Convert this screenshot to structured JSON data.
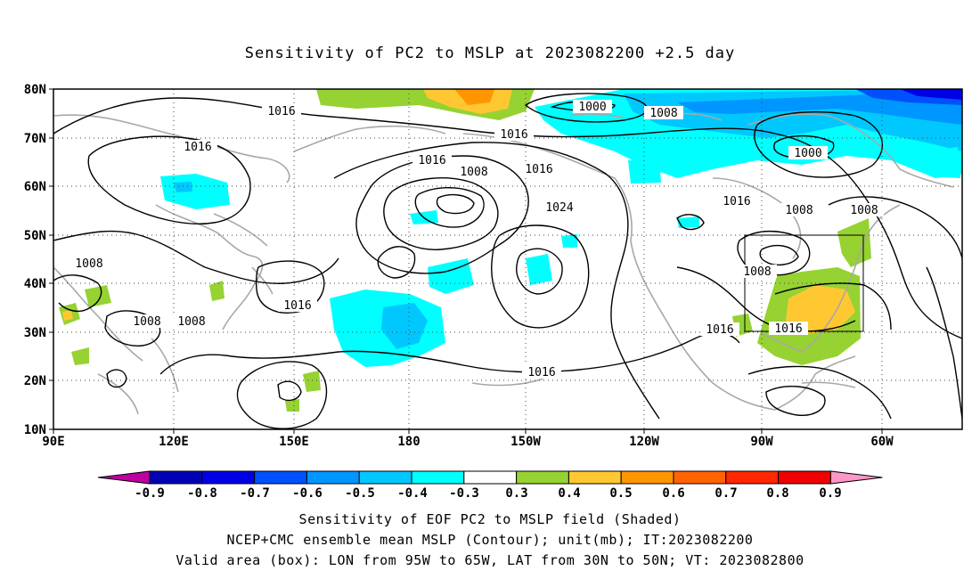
{
  "title": "Sensitivity of PC2 to MSLP at 2023082200 +2.5 day",
  "lat_labels": [
    "80N",
    "70N",
    "60N",
    "50N",
    "40N",
    "30N",
    "20N",
    "10N"
  ],
  "lon_labels": [
    "90E",
    "120E",
    "150E",
    "180",
    "150W",
    "120W",
    "90W",
    "60W"
  ],
  "contour_labels": [
    {
      "text": "1016"
    },
    {
      "text": "1000"
    },
    {
      "text": "1008"
    },
    {
      "text": "1016"
    },
    {
      "text": "1016"
    },
    {
      "text": "1008"
    },
    {
      "text": "1016"
    },
    {
      "text": "1000"
    },
    {
      "text": "1024"
    },
    {
      "text": "1016"
    },
    {
      "text": "1008"
    },
    {
      "text": "1016"
    },
    {
      "text": "1008"
    },
    {
      "text": "1008"
    },
    {
      "text": "1016"
    },
    {
      "text": "1008"
    },
    {
      "text": "1008"
    },
    {
      "text": "1016"
    },
    {
      "text": "1016"
    },
    {
      "text": "1016"
    },
    {
      "text": "1008"
    }
  ],
  "colorbar": {
    "labels": [
      "-0.9",
      "-0.8",
      "-0.7",
      "-0.6",
      "-0.5",
      "-0.4",
      "-0.3",
      "0.3",
      "0.4",
      "0.5",
      "0.6",
      "0.7",
      "0.8",
      "0.9"
    ],
    "colors": [
      "#c000a0",
      "#0000b4",
      "#0000e6",
      "#0050ff",
      "#0096ff",
      "#00c8ff",
      "#00ffff",
      "#ffffff",
      "#96d232",
      "#ffc832",
      "#ff9600",
      "#ff6400",
      "#ff2800",
      "#f00000",
      "#ff96c8"
    ]
  },
  "valid_box": {
    "lon": [
      "95W",
      "65W"
    ],
    "lat": [
      "30N",
      "50N"
    ]
  },
  "captions": [
    "Sensitivity of EOF PC2 to MSLP field (Shaded)",
    "NCEP+CMC ensemble mean MSLP (Contour); unit(mb); IT:2023082200",
    "Valid area (box): LON from 95W to 65W, LAT from 30N to 50N; VT: 2023082800"
  ]
}
